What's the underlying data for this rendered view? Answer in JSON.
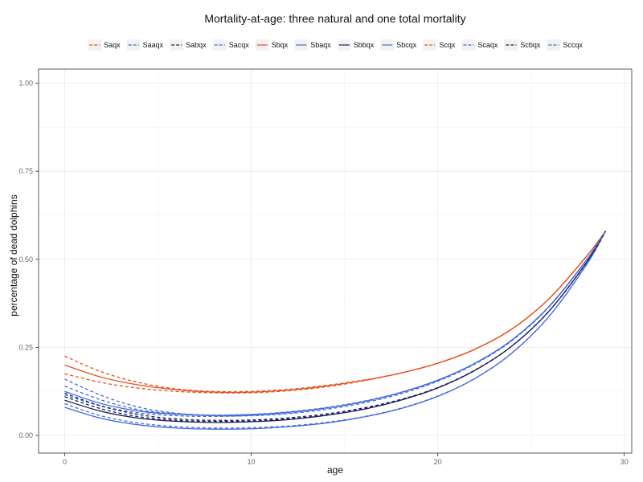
{
  "chart_data": {
    "type": "line",
    "title": "Mortality-at-age: three natural and one total mortality",
    "xlabel": "age",
    "ylabel": "percentage of dead dolphins",
    "xlim": [
      -1.4,
      30.4
    ],
    "ylim": [
      -0.05,
      1.04
    ],
    "xticks": [
      0,
      10,
      20,
      30
    ],
    "xtick_labels": [
      "0",
      "10",
      "20",
      "30"
    ],
    "yticks": [
      0,
      0.25,
      0.5,
      0.75,
      1.0
    ],
    "ytick_labels": [
      "0.00",
      "0.25",
      "0.50",
      "0.75",
      "1.00"
    ],
    "grid": true,
    "legend_position": "top",
    "x": [
      0,
      2,
      4,
      6,
      8,
      10,
      12,
      14,
      16,
      18,
      20,
      22,
      24,
      26,
      28,
      29
    ],
    "series": [
      {
        "name": "Saqx",
        "color": "#e8501a",
        "dashed": true,
        "values": [
          0.225,
          0.18,
          0.15,
          0.132,
          0.125,
          0.125,
          0.131,
          0.142,
          0.157,
          0.177,
          0.205,
          0.245,
          0.303,
          0.39,
          0.51,
          0.58
        ]
      },
      {
        "name": "Saaqx",
        "color": "#4169e1",
        "dashed": true,
        "values": [
          0.14,
          0.1,
          0.073,
          0.062,
          0.058,
          0.06,
          0.067,
          0.079,
          0.097,
          0.122,
          0.157,
          0.205,
          0.272,
          0.368,
          0.5,
          0.58
        ]
      },
      {
        "name": "Sabqx",
        "color": "#1a1f5a",
        "dashed": true,
        "values": [
          0.11,
          0.075,
          0.053,
          0.043,
          0.04,
          0.041,
          0.047,
          0.058,
          0.075,
          0.1,
          0.135,
          0.185,
          0.255,
          0.355,
          0.493,
          0.58
        ]
      },
      {
        "name": "Sacqx",
        "color": "#4169e1",
        "dashed": true,
        "values": [
          0.09,
          0.055,
          0.035,
          0.025,
          0.021,
          0.022,
          0.027,
          0.037,
          0.053,
          0.077,
          0.112,
          0.162,
          0.235,
          0.34,
          0.487,
          0.58
        ]
      },
      {
        "name": "Sbqx",
        "color": "#e8501a",
        "dashed": false,
        "values": [
          0.2,
          0.165,
          0.143,
          0.13,
          0.123,
          0.123,
          0.129,
          0.14,
          0.156,
          0.177,
          0.205,
          0.245,
          0.303,
          0.39,
          0.51,
          0.58
        ]
      },
      {
        "name": "Sbaqx",
        "color": "#4169e1",
        "dashed": false,
        "values": [
          0.125,
          0.09,
          0.069,
          0.06,
          0.057,
          0.059,
          0.066,
          0.078,
          0.096,
          0.122,
          0.157,
          0.205,
          0.272,
          0.368,
          0.5,
          0.58
        ]
      },
      {
        "name": "Sbbqx",
        "color": "#1a1f5a",
        "dashed": false,
        "values": [
          0.1,
          0.068,
          0.049,
          0.04,
          0.037,
          0.039,
          0.045,
          0.057,
          0.074,
          0.1,
          0.135,
          0.185,
          0.255,
          0.355,
          0.493,
          0.58
        ]
      },
      {
        "name": "Sbcqx",
        "color": "#4169e1",
        "dashed": false,
        "values": [
          0.08,
          0.048,
          0.03,
          0.021,
          0.018,
          0.019,
          0.025,
          0.035,
          0.052,
          0.076,
          0.111,
          0.162,
          0.235,
          0.34,
          0.487,
          0.58
        ]
      },
      {
        "name": "Scqx",
        "color": "#e8501a",
        "dashed": true,
        "values": [
          0.175,
          0.15,
          0.134,
          0.125,
          0.121,
          0.121,
          0.127,
          0.138,
          0.155,
          0.177,
          0.205,
          0.245,
          0.303,
          0.39,
          0.51,
          0.58
        ]
      },
      {
        "name": "Scaqx",
        "color": "#4169e1",
        "dashed": true,
        "values": [
          0.115,
          0.083,
          0.064,
          0.056,
          0.054,
          0.057,
          0.064,
          0.077,
          0.095,
          0.121,
          0.156,
          0.205,
          0.272,
          0.368,
          0.5,
          0.58
        ]
      },
      {
        "name": "Scbqx",
        "color": "#1a1f5a",
        "dashed": true,
        "values": [
          0.12,
          0.083,
          0.059,
          0.047,
          0.043,
          0.044,
          0.05,
          0.061,
          0.078,
          0.102,
          0.136,
          0.186,
          0.255,
          0.355,
          0.493,
          0.58
        ]
      },
      {
        "name": "Sccqx",
        "color": "#4169e1",
        "dashed": true,
        "values": [
          0.16,
          0.113,
          0.08,
          0.063,
          0.056,
          0.056,
          0.062,
          0.074,
          0.092,
          0.118,
          0.154,
          0.203,
          0.27,
          0.367,
          0.5,
          0.58
        ]
      }
    ]
  }
}
